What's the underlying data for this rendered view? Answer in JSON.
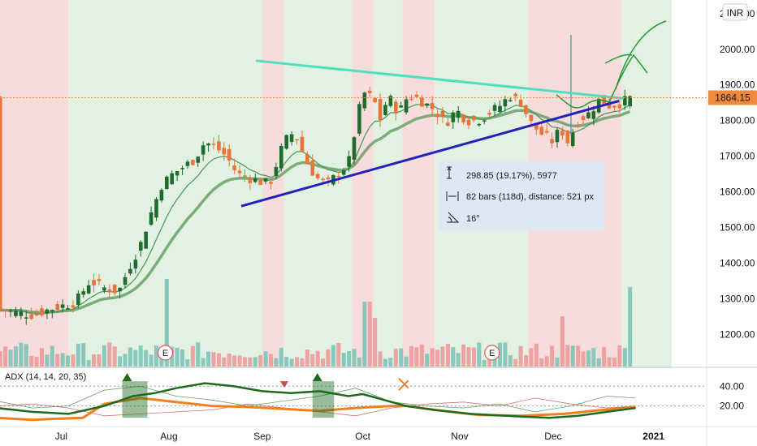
{
  "colors": {
    "up": "#26a69a",
    "down": "#ef5350",
    "candle_up": "#1e6b2e",
    "candle_down": "#e8743b",
    "bg_green": "#e3f1e3",
    "bg_red": "#f7dcdc",
    "ema_fast": "#3f9a56",
    "ema_slow": "#6aa06a",
    "resistance": "#4de0c0",
    "support": "#2222bb",
    "projection": "#229933",
    "price_line": "#f0883e",
    "adx_line": "#1e6b1e",
    "di_plus": "#3a8a3a",
    "di_minus": "#c05050",
    "adx_orange": "#f07f1e"
  },
  "chart_data": {
    "type": "candlestick",
    "currency": "INR",
    "current_price": "1864.15",
    "y_ticks": [
      "1200.00",
      "1300.00",
      "1400.00",
      "1500.00",
      "1600.00",
      "1700.00",
      "1800.00",
      "1900.00",
      "2000.00",
      "2100.00"
    ],
    "ylim": [
      1110,
      2120
    ],
    "x_labels": [
      "Jul",
      "Aug",
      "Sep",
      "Oct",
      "Nov",
      "Dec",
      "2021"
    ],
    "earnings_marker": "E",
    "measure_box": {
      "price_range": "298.85 (19.17%), 5977",
      "bars_range": "82 bars (118d), distance: 521 px",
      "angle": "16°"
    },
    "trendlines": {
      "resistance": [
        [
          1925,
          1968
        ],
        [
          2270,
          1862
        ]
      ],
      "support": [
        [
          1935,
          1560
        ],
        [
          2270,
          1855
        ]
      ]
    },
    "adx": {
      "label": "ADX (14, 14, 20, 35)",
      "levels": [
        "40.00",
        "20.00"
      ],
      "ylim": [
        0,
        55
      ]
    }
  }
}
